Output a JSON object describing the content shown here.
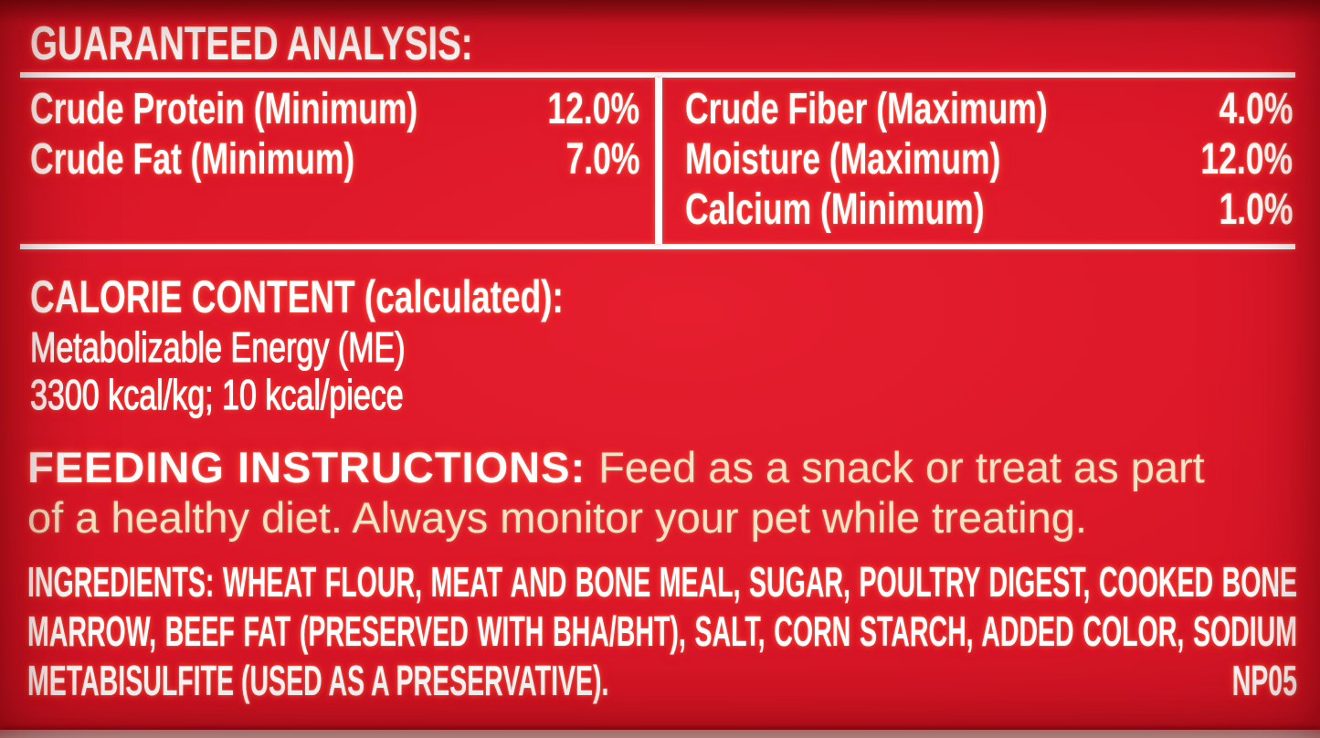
{
  "colors": {
    "background_red_center": "#e01c2b",
    "background_red_edge": "#ad0f1d",
    "text_white": "#ffffff",
    "text_cream": "#f2e4c4",
    "bottom_edge_strip": "#ecded7"
  },
  "guaranteed_analysis": {
    "heading": "GUARANTEED ANALYSIS:",
    "left_rows": [
      {
        "label": "Crude Protein (Minimum)",
        "value": "12.0%"
      },
      {
        "label": "Crude Fat (Minimum)",
        "value": "7.0%"
      }
    ],
    "right_rows": [
      {
        "label": "Crude Fiber (Maximum)",
        "value": "4.0%"
      },
      {
        "label": "Moisture (Maximum)",
        "value": "12.0%"
      },
      {
        "label": "Calcium (Minimum)",
        "value": "1.0%"
      }
    ]
  },
  "calorie_content": {
    "heading": "CALORIE CONTENT (calculated):",
    "me_line": "Metabolizable Energy (ME)",
    "kcal_line": "3300 kcal/kg; 10 kcal/piece"
  },
  "feeding_instructions": {
    "heading": "FEEDING INSTRUCTIONS:",
    "text_line1": "Feed as a snack or treat as part",
    "text_line2": "of a healthy diet. Always monitor your pet while treating."
  },
  "ingredients": {
    "line1": "INGREDIENTS: WHEAT FLOUR, MEAT AND BONE MEAL, SUGAR, POULTRY DIGEST, COOKED BONE",
    "line2": "MARROW, BEEF FAT (PRESERVED WITH BHA/BHT), SALT, CORN STARCH, ADDED COLOR, SODIUM",
    "line3": "METABISULFITE (USED AS A PRESERVATIVE).",
    "product_code": "NP05"
  }
}
